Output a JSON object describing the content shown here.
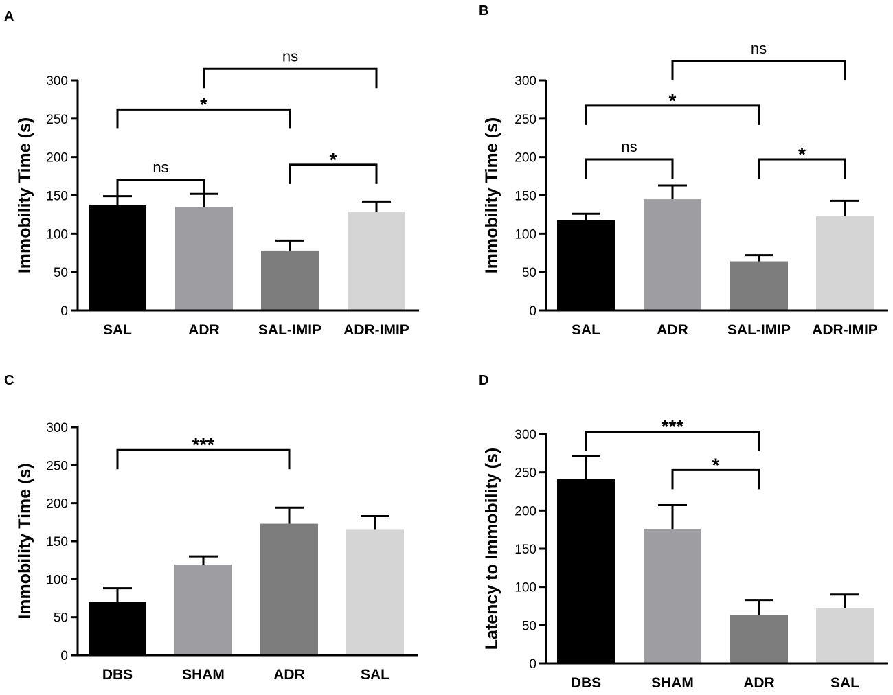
{
  "chart_data": [
    {
      "type": "bar",
      "panel": "A",
      "title": "",
      "xlabel": "",
      "ylabel": "Immobility Time (s)",
      "ylim": [
        0,
        300
      ],
      "yticks": [
        0,
        50,
        100,
        150,
        200,
        250,
        300
      ],
      "categories": [
        "SAL",
        "ADR",
        "SAL-IMIP",
        "ADR-IMIP"
      ],
      "values": [
        137,
        135,
        78,
        129
      ],
      "errors": [
        12,
        17,
        13,
        13
      ],
      "colors": [
        "#000000",
        "#9e9ea2",
        "#7d7d7d",
        "#d5d5d5"
      ],
      "annotations": [
        {
          "from": 0,
          "to": 1,
          "label": "ns"
        },
        {
          "from": 0,
          "to": 2,
          "label": "*"
        },
        {
          "from": 2,
          "to": 3,
          "label": "*"
        },
        {
          "from": 1,
          "to": 3,
          "label": "ns"
        }
      ]
    },
    {
      "type": "bar",
      "panel": "B",
      "title": "",
      "xlabel": "",
      "ylabel": "Immobility Time (s)",
      "ylim": [
        0,
        300
      ],
      "yticks": [
        0,
        50,
        100,
        150,
        200,
        250,
        300
      ],
      "categories": [
        "SAL",
        "ADR",
        "SAL-IMIP",
        "ADR-IMIP"
      ],
      "values": [
        118,
        145,
        64,
        123
      ],
      "errors": [
        8,
        18,
        8,
        20
      ],
      "colors": [
        "#000000",
        "#9e9ea2",
        "#7d7d7d",
        "#d5d5d5"
      ],
      "annotations": [
        {
          "from": 0,
          "to": 1,
          "label": "ns"
        },
        {
          "from": 0,
          "to": 2,
          "label": "*"
        },
        {
          "from": 2,
          "to": 3,
          "label": "*"
        },
        {
          "from": 1,
          "to": 3,
          "label": "ns"
        }
      ]
    },
    {
      "type": "bar",
      "panel": "C",
      "title": "",
      "xlabel": "",
      "ylabel": "Immobility Time (s)",
      "ylim": [
        0,
        300
      ],
      "yticks": [
        0,
        50,
        100,
        150,
        200,
        250,
        300
      ],
      "categories": [
        "DBS",
        "SHAM",
        "ADR",
        "SAL"
      ],
      "values": [
        70,
        119,
        173,
        165
      ],
      "errors": [
        18,
        11,
        21,
        18
      ],
      "colors": [
        "#000000",
        "#9e9ea2",
        "#7d7d7d",
        "#d5d5d5"
      ],
      "annotations": [
        {
          "from": 0,
          "to": 2,
          "label": "***"
        }
      ]
    },
    {
      "type": "bar",
      "panel": "D",
      "title": "",
      "xlabel": "",
      "ylabel": "Latency to Immobility (s)",
      "ylim": [
        0,
        300
      ],
      "yticks": [
        0,
        50,
        100,
        150,
        200,
        250,
        300
      ],
      "categories": [
        "DBS",
        "SHAM",
        "ADR",
        "SAL"
      ],
      "values": [
        241,
        176,
        63,
        72
      ],
      "errors": [
        30,
        31,
        20,
        18
      ],
      "colors": [
        "#000000",
        "#9e9ea2",
        "#7d7d7d",
        "#d5d5d5"
      ],
      "annotations": [
        {
          "from": 0,
          "to": 2,
          "label": "***"
        },
        {
          "from": 1,
          "to": 2,
          "label": "*"
        }
      ]
    }
  ]
}
